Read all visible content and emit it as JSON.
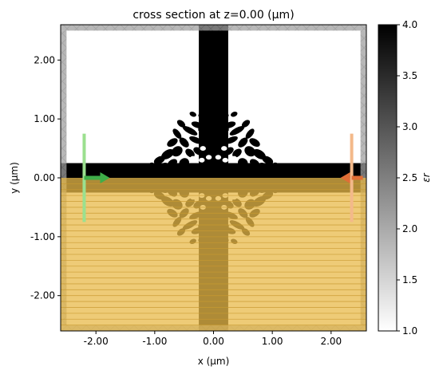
{
  "chart_data": {
    "type": "heatmap",
    "title": "cross section at z=0.00 (μm)",
    "xlabel": "x (μm)",
    "ylabel": "y (μm)",
    "xlim": [
      -2.6,
      2.6
    ],
    "ylim": [
      -2.6,
      2.6
    ],
    "x_ticks": [
      -2.0,
      -1.0,
      0.0,
      1.0,
      2.0
    ],
    "y_ticks": [
      2.0,
      1.0,
      0.0,
      -1.0,
      -2.0
    ],
    "x_tick_labels": [
      "-2.00",
      "-1.00",
      "0.00",
      "1.00",
      "2.00"
    ],
    "y_tick_labels": [
      "2.00",
      "1.00",
      "0.00",
      "-1.00",
      "-2.00"
    ],
    "colorbar": {
      "label": "εr",
      "min": 1.0,
      "max": 4.0,
      "ticks": [
        1.0,
        1.5,
        2.0,
        2.5,
        3.0,
        3.5,
        4.0
      ],
      "tick_labels": [
        "1.0",
        "1.5",
        "2.0",
        "2.5",
        "3.0",
        "3.5",
        "4.0"
      ],
      "colormap": "gray_r"
    },
    "structures": {
      "vertical_waveguide": {
        "x": [
          -0.25,
          0.25
        ],
        "y": [
          -2.6,
          2.6
        ],
        "eps": 4.0
      },
      "horizontal_waveguide": {
        "x": [
          -2.6,
          2.6
        ],
        "y": [
          -0.25,
          0.25
        ],
        "eps": 4.0
      },
      "design_region": {
        "x": [
          -1.25,
          1.25
        ],
        "y": [
          -1.25,
          1.25
        ]
      }
    },
    "overlays": {
      "pml_boundary": {
        "inner_half_width": 2.5,
        "color": "#a0a0a0",
        "alpha": 0.75
      },
      "symmetry_region": {
        "x": [
          -2.6,
          2.6
        ],
        "y": [
          -2.6,
          0.0
        ],
        "color": "#e8b94a",
        "alpha": 0.75
      },
      "source": {
        "x": -2.2,
        "y_range": [
          -0.75,
          0.75
        ],
        "direction": "+x",
        "color": "#3fae49"
      },
      "monitor": {
        "x": 2.35,
        "y_range": [
          -0.75,
          0.75
        ],
        "direction": "-x",
        "color": "#e06e36"
      }
    },
    "grid": false
  }
}
